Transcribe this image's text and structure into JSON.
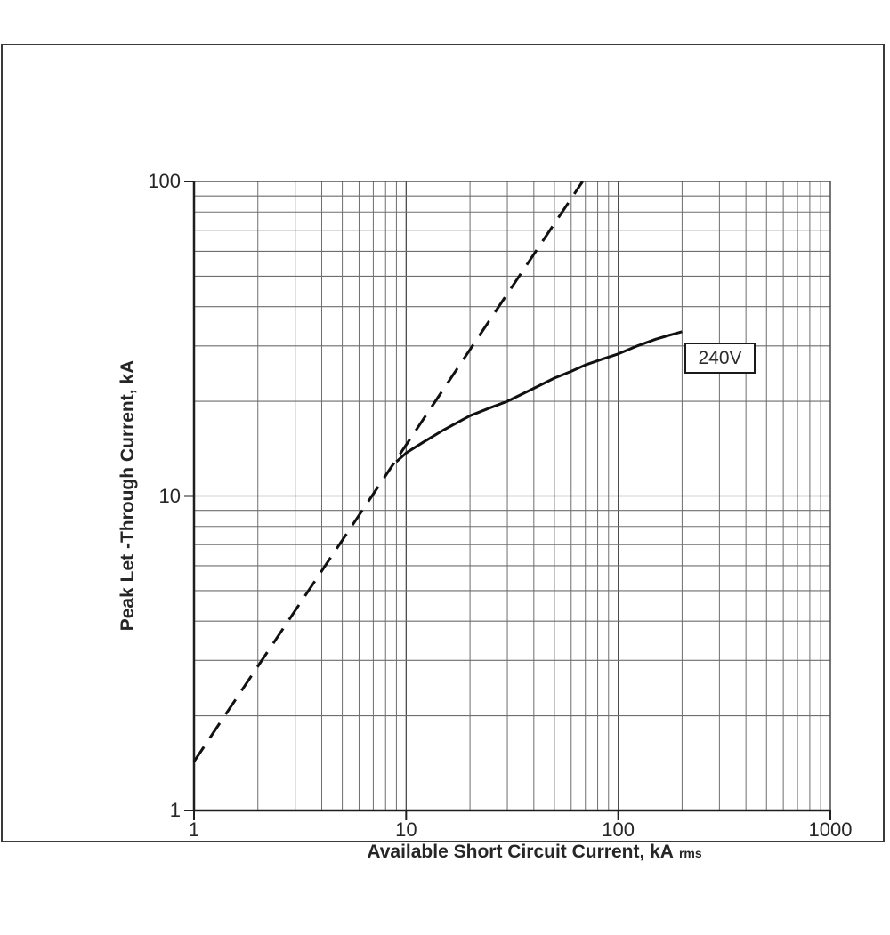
{
  "colors": {
    "background": "#ffffff",
    "frame_border": "#3a3a3a",
    "axis_line": "#1f1f1f",
    "grid_minor": "#6e6e6e",
    "grid_major": "#4a4a4a",
    "curve": "#111111",
    "text": "#262626"
  },
  "chart_data": {
    "type": "line",
    "title": "",
    "xlabel": "Available Short Circuit Current, kA",
    "xlabel_subscript": "rms",
    "ylabel": "Peak Let -Through Current, kA",
    "x_axis": {
      "scale": "log",
      "min": 1,
      "max": 1000,
      "tick_values": [
        1,
        10,
        100,
        1000
      ],
      "tick_labels": [
        "1",
        "10",
        "100",
        "1000"
      ]
    },
    "y_axis": {
      "scale": "log",
      "min": 1,
      "max": 100,
      "tick_values": [
        1,
        10,
        100
      ],
      "tick_labels": [
        "1",
        "10",
        "100"
      ]
    },
    "grid": {
      "minor_gridlines": true,
      "major_gridlines": true
    },
    "legend": "none",
    "series": [
      {
        "name": "dashed-reference-line",
        "style": "dashed",
        "label": "",
        "points": [
          [
            1,
            1.43
          ],
          [
            67.9,
            100
          ]
        ]
      },
      {
        "name": "240v-let-through-curve",
        "style": "solid",
        "label": "240V",
        "points": [
          [
            9,
            12.85
          ],
          [
            10,
            13.7
          ],
          [
            12,
            14.8
          ],
          [
            15,
            16.2
          ],
          [
            20,
            18.0
          ],
          [
            25,
            19.1
          ],
          [
            30,
            20.0
          ],
          [
            40,
            22.0
          ],
          [
            50,
            23.7
          ],
          [
            60,
            24.9
          ],
          [
            70,
            26.1
          ],
          [
            85,
            27.3
          ],
          [
            100,
            28.3
          ],
          [
            123,
            30.0
          ],
          [
            150,
            31.5
          ],
          [
            170,
            32.3
          ],
          [
            200,
            33.3
          ]
        ]
      }
    ],
    "annotation": {
      "text": "240V"
    }
  }
}
